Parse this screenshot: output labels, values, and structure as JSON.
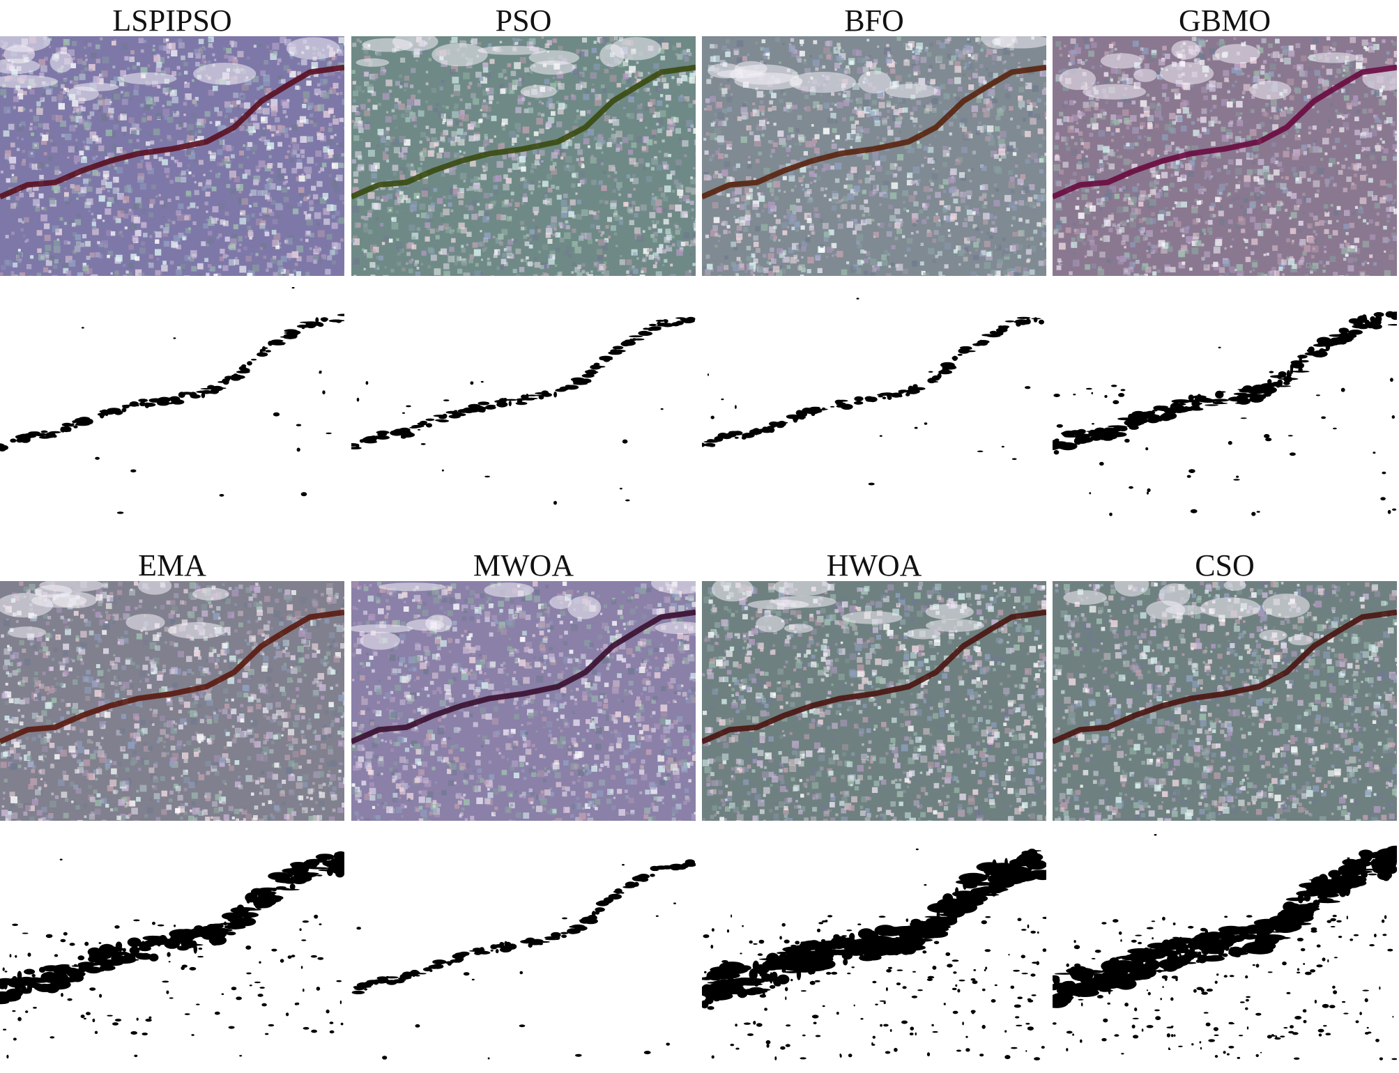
{
  "panels": [
    {
      "title": "LSPIPSO",
      "tint": "#7e78a8",
      "crack": "#5a1020",
      "density": 1
    },
    {
      "title": "PSO",
      "tint": "#6f8a86",
      "crack": "#3a4a10",
      "density": 1
    },
    {
      "title": "BFO",
      "tint": "#7f8a92",
      "crack": "#5a2410",
      "density": 1
    },
    {
      "title": "GBMO",
      "tint": "#8a7890",
      "crack": "#6a0a40",
      "density": 2
    },
    {
      "title": "EMA",
      "tint": "#80808e",
      "crack": "#5a1a10",
      "density": 3
    },
    {
      "title": "MWOA",
      "tint": "#8a80a8",
      "crack": "#3a1030",
      "density": 1
    },
    {
      "title": "HWOA",
      "tint": "#6f8080",
      "crack": "#4a1410",
      "density": 4
    },
    {
      "title": "CSO",
      "tint": "#6f8080",
      "crack": "#4a1410",
      "density": 4
    }
  ]
}
